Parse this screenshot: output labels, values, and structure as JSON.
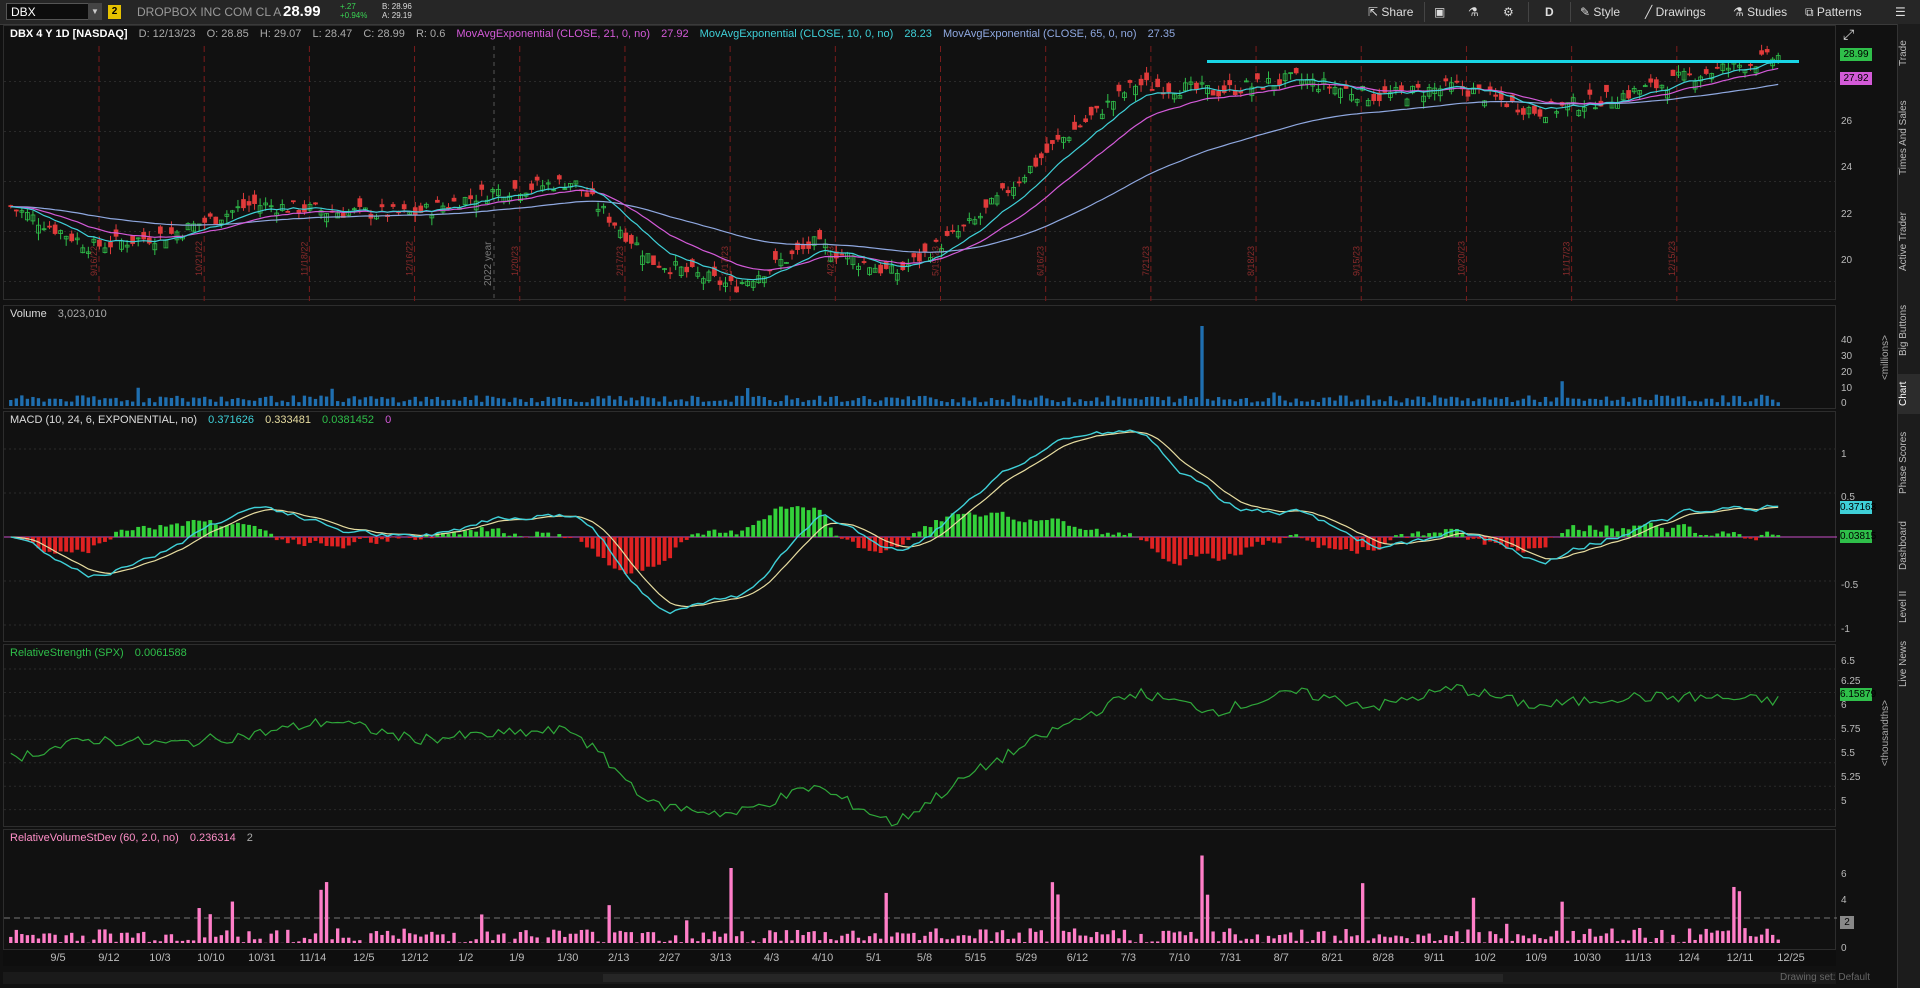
{
  "toolbar": {
    "symbol": "DBX",
    "link_group": "2",
    "company": "DROPBOX INC COM CL A",
    "last": "28.99",
    "change": "+.27",
    "change_pct": "+0.94%",
    "bid": "B: 28.96",
    "ask": "A: 29.19",
    "share": "Share",
    "period": "D",
    "style": "Style",
    "drawings": "Drawings",
    "studies": "Studies",
    "patterns": "Patterns"
  },
  "right_tabs": [
    "Trade",
    "Times And Sales",
    "Active Trader",
    "Big Buttons",
    "Chart",
    "Phase Scores",
    "Dashboard",
    "Level II",
    "Live News"
  ],
  "price_pane": {
    "title": "DBX 4 Y 1D [NASDAQ]",
    "date": "D: 12/13/23",
    "open": "O: 28.85",
    "high": "H: 29.07",
    "low": "L: 28.47",
    "close": "C: 28.99",
    "range": "R: 0.6",
    "ema21_label": "MovAvgExponential (CLOSE, 21, 0, no)",
    "ema21_value": "27.92",
    "ema10_label": "MovAvgExponential (CLOSE, 10, 0, no)",
    "ema10_value": "28.23",
    "ema65_label": "MovAvgExponential (CLOSE, 65, 0, no)",
    "ema65_value": "27.35",
    "tag_last": "28.99",
    "tag_ema": "27.92",
    "y_ticks": [
      "26",
      "24",
      "22",
      "20"
    ],
    "year_label": "2022 year",
    "event_dates": [
      "9/16/22",
      "10/21/22",
      "11/18/22",
      "12/16/22",
      "1/20/23",
      "2/17/23",
      "3/17/23",
      "4/21/23",
      "5/19/23",
      "6/16/23",
      "7/21/23",
      "8/18/23",
      "9/15/23",
      "10/20/23",
      "11/17/23",
      "12/15/23"
    ]
  },
  "volume_pane": {
    "label": "Volume",
    "value": "3,023,010",
    "y_ticks": [
      "40",
      "30",
      "20",
      "10",
      "0"
    ],
    "unit": "<millions>"
  },
  "macd_pane": {
    "label": "MACD (10, 24, 6, EXPONENTIAL, no)",
    "value": "0.371626",
    "avg": "0.333481",
    "diff": "0.0381452",
    "zero": "0",
    "y_ticks": [
      "1",
      "0.5",
      "-0.5",
      "-1"
    ],
    "tag_value": "0.37163",
    "tag_diff": "0.03815"
  },
  "rs_pane": {
    "label": "RelativeStrength (SPX)",
    "value": "0.0061588",
    "y_ticks": [
      "6.5",
      "6.25",
      "6",
      "5.75",
      "5.5",
      "5.25",
      "5"
    ],
    "tag": "6.15879",
    "unit": "<thousandths>"
  },
  "rv_pane": {
    "label": "RelativeVolumeStDev (60, 2.0, no)",
    "value": "0.236314",
    "threshold": "2",
    "y_ticks": [
      "6",
      "4",
      "0"
    ],
    "tag": "2"
  },
  "x_axis": [
    "9/5",
    "9/12",
    "10/3",
    "10/10",
    "10/31",
    "11/14",
    "12/5",
    "12/12",
    "1/2",
    "1/9",
    "1/30",
    "2/13",
    "2/27",
    "3/13",
    "4/3",
    "4/10",
    "5/1",
    "5/8",
    "5/15",
    "5/29",
    "6/12",
    "7/3",
    "7/10",
    "7/31",
    "8/7",
    "8/21",
    "8/28",
    "9/11",
    "10/2",
    "10/9",
    "10/30",
    "11/13",
    "12/4",
    "12/11",
    "12/25"
  ],
  "footnote": "Drawing set: Default",
  "colors": {
    "up": "#2fbf4a",
    "down": "#e03b3b",
    "ema21": "#d35ad8",
    "ema10": "#3fd0d8",
    "ema65": "#8fa8e0",
    "resistance": "#19d6e6"
  },
  "chart_data": {
    "type": "line",
    "title": "DBX 4 Y 1D [NASDAQ]",
    "x": [
      "9/5",
      "10/3",
      "10/31",
      "11/14",
      "12/12",
      "1/9",
      "1/30",
      "2/13",
      "2/27",
      "3/13",
      "4/10",
      "5/1",
      "5/15",
      "6/12",
      "7/10",
      "7/31",
      "8/21",
      "9/11",
      "10/9",
      "10/30",
      "11/13",
      "12/4",
      "12/13"
    ],
    "series": [
      {
        "name": "Close",
        "values": [
          23.0,
          21.4,
          21.9,
          23.1,
          22.8,
          22.7,
          23.6,
          24.0,
          20.8,
          19.8,
          21.5,
          20.3,
          22.4,
          25.5,
          27.9,
          27.6,
          28.1,
          27.4,
          27.8,
          26.8,
          27.4,
          28.3,
          28.99
        ]
      },
      {
        "name": "RelativeStrength (SPX)",
        "values": [
          5.55,
          5.75,
          5.7,
          5.8,
          5.95,
          5.75,
          5.8,
          5.85,
          5.05,
          4.95,
          5.25,
          4.85,
          5.4,
          5.85,
          6.25,
          6.05,
          6.25,
          6.1,
          6.3,
          6.1,
          6.2,
          6.2,
          6.16
        ]
      }
    ],
    "resistance_level": 28.8,
    "ylim": [
      19.5,
      29.5
    ]
  }
}
